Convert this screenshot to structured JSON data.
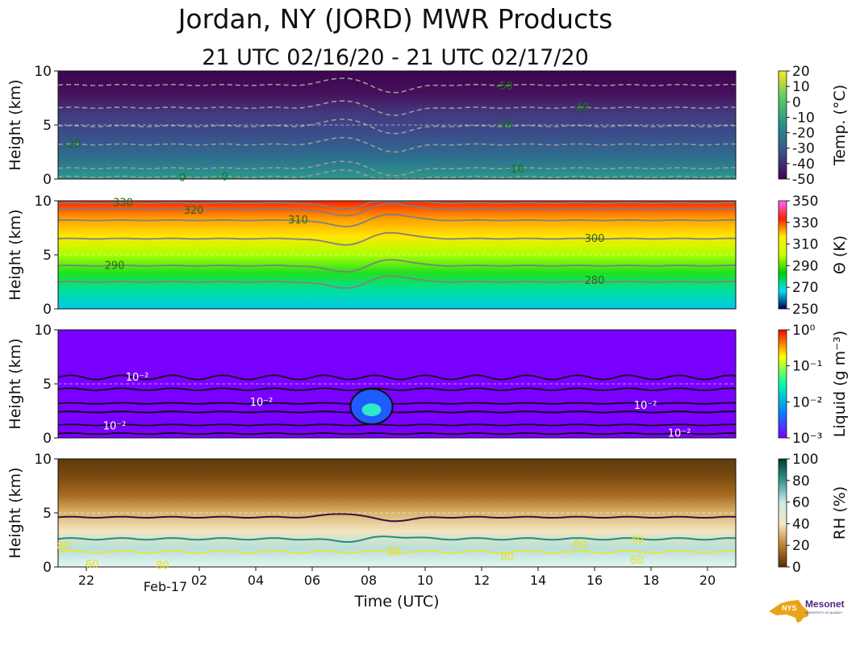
{
  "title": "Jordan, NY (JORD) MWR Products",
  "subtitle": "21 UTC 02/16/20 - 21 UTC 02/17/20",
  "xlabel": "Time (UTC)",
  "xticks": [
    "22",
    "Feb-17",
    "02",
    "04",
    "06",
    "08",
    "10",
    "12",
    "14",
    "16",
    "18",
    "20"
  ],
  "logo": {
    "mark": "NYS",
    "name": "Mesonet",
    "sub": "UNIVERSITY AT ALBANY"
  },
  "chart_data": [
    {
      "type": "heatmap",
      "panel": "temperature",
      "ylabel": "Height (km)",
      "yticks": [
        "0",
        "5",
        "10"
      ],
      "ylim": [
        0,
        10
      ],
      "colorbar": {
        "label": "Temp. (°C)",
        "ticks": [
          "20",
          "10",
          "0",
          "-10",
          "-20",
          "-30",
          "-40",
          "-50"
        ],
        "range": [
          -50,
          20
        ],
        "colors": [
          "#440154",
          "#3b528b",
          "#21918c",
          "#5ec962",
          "#fde725"
        ]
      },
      "contour_labels": [
        {
          "text": "-50",
          "time": 12.8,
          "height": 8.6
        },
        {
          "text": "-40",
          "time": 15.5,
          "height": 6.6
        },
        {
          "text": "-30",
          "time": 12.8,
          "height": 5.0
        },
        {
          "text": "-20",
          "time": 21.5,
          "height": 3.2
        },
        {
          "text": "-10",
          "time": 13.2,
          "height": 0.9
        },
        {
          "text": "0",
          "time": 1.4,
          "height": 0.1
        },
        {
          "text": "0",
          "time": 2.9,
          "height": 0.2
        }
      ],
      "isotherm_heights": [
        {
          "value": -50,
          "height": 8.7
        },
        {
          "value": -40,
          "height": 6.6
        },
        {
          "value": -30,
          "height": 4.9
        },
        {
          "value": -20,
          "height": 3.2
        },
        {
          "value": -10,
          "height": 1.0
        },
        {
          "value": 0,
          "height": 0.2
        }
      ]
    },
    {
      "type": "heatmap",
      "panel": "potential_temperature",
      "ylabel": "Height (km)",
      "yticks": [
        "0",
        "5",
        "10"
      ],
      "ylim": [
        0,
        10
      ],
      "colorbar": {
        "label": "Θ (K)",
        "ticks": [
          "350",
          "330",
          "310",
          "290",
          "270",
          "250"
        ],
        "range": [
          250,
          360
        ],
        "colors": [
          "#00004a",
          "#00e0ff",
          "#00d000",
          "#ccff00",
          "#ffee00",
          "#ff2000",
          "#ff66ff"
        ]
      },
      "contour_labels": [
        {
          "text": "330",
          "time": 23.3,
          "height": 9.8
        },
        {
          "text": "320",
          "time": 1.8,
          "height": 9.1
        },
        {
          "text": "310",
          "time": 5.5,
          "height": 8.2
        },
        {
          "text": "300",
          "time": 16.0,
          "height": 6.5
        },
        {
          "text": "290",
          "time": 23.0,
          "height": 4.0
        },
        {
          "text": "280",
          "time": 16.0,
          "height": 2.6
        }
      ],
      "isentrope_heights": [
        {
          "value": 280,
          "height": 2.5
        },
        {
          "value": 290,
          "height": 4.0
        },
        {
          "value": 300,
          "height": 6.5
        },
        {
          "value": 310,
          "height": 8.2
        },
        {
          "value": 320,
          "height": 9.2
        },
        {
          "value": 330,
          "height": 9.8
        }
      ]
    },
    {
      "type": "heatmap",
      "panel": "liquid_water",
      "ylabel": "Height (km)",
      "yticks": [
        "0",
        "5",
        "10"
      ],
      "ylim": [
        0,
        10
      ],
      "colorbar": {
        "label": "Liquid (g m⁻³)",
        "ticks": [
          "10⁰",
          "10⁻¹",
          "10⁻²",
          "10⁻³"
        ],
        "scale": "log",
        "range": [
          0.001,
          1
        ],
        "colors": [
          "#7a00ff",
          "#0088ff",
          "#00ffaa",
          "#ffff00",
          "#ff0000"
        ]
      },
      "contour_labels": [
        {
          "text": "10⁻²",
          "time": 23.8,
          "height": 5.6
        },
        {
          "text": "10⁻²",
          "time": 4.2,
          "height": 3.3
        },
        {
          "text": "10⁻²",
          "time": 23.0,
          "height": 1.1
        },
        {
          "text": "10⁻²",
          "time": 17.8,
          "height": 3.0
        },
        {
          "text": "10⁻²",
          "time": 19.0,
          "height": 0.4
        }
      ],
      "cloud_maximum": {
        "time": 8.1,
        "height": 2.6,
        "value": 0.03
      }
    },
    {
      "type": "heatmap",
      "panel": "relative_humidity",
      "ylabel": "Height (km)",
      "yticks": [
        "0",
        "5",
        "10"
      ],
      "ylim": [
        0,
        10
      ],
      "colorbar": {
        "label": "RH (%)",
        "ticks": [
          "100",
          "80",
          "60",
          "40",
          "20",
          "0"
        ],
        "range": [
          0,
          100
        ],
        "colors": [
          "#543005",
          "#bf812d",
          "#f6e8c3",
          "#c7eae5",
          "#35978f",
          "#003c30"
        ]
      },
      "contour_labels": [
        {
          "text": "80",
          "time": 21.2,
          "height": 1.9
        },
        {
          "text": "60",
          "time": 22.2,
          "height": 0.2
        },
        {
          "text": "80",
          "time": 0.7,
          "height": 0.1
        },
        {
          "text": "80",
          "time": 8.9,
          "height": 1.4
        },
        {
          "text": "80",
          "time": 12.9,
          "height": 0.9
        },
        {
          "text": "60",
          "time": 15.5,
          "height": 2.1
        },
        {
          "text": "40",
          "time": 17.5,
          "height": 2.5
        },
        {
          "text": "60",
          "time": 17.5,
          "height": 0.6
        }
      ]
    }
  ]
}
